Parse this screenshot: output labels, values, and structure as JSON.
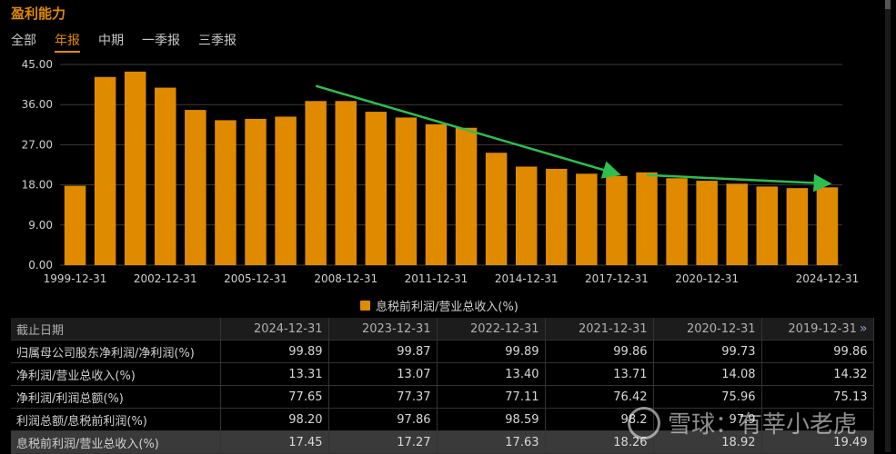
{
  "title": "盈利能力",
  "tabs": [
    {
      "label": "全部",
      "active": false
    },
    {
      "label": "年报",
      "active": true
    },
    {
      "label": "中期",
      "active": false
    },
    {
      "label": "一季报",
      "active": false
    },
    {
      "label": "三季报",
      "active": false
    }
  ],
  "colors": {
    "bar": "#e08a00",
    "trend": "#2fbf4f",
    "accent": "#e08a00"
  },
  "chart_data": {
    "type": "bar",
    "title": "",
    "xlabel": "",
    "ylabel": "",
    "ylim": [
      0,
      45
    ],
    "yticks": [
      "0.00",
      "9.00",
      "18.00",
      "27.00",
      "36.00",
      "45.00"
    ],
    "x_tick_labels": [
      "1999-12-31",
      "2002-12-31",
      "2005-12-31",
      "2008-12-31",
      "2011-12-31",
      "2014-12-31",
      "2017-12-31",
      "2020-12-31",
      "2024-12-31"
    ],
    "categories": [
      "1999-12-31",
      "2000-12-31",
      "2001-12-31",
      "2002-12-31",
      "2003-12-31",
      "2004-12-31",
      "2005-12-31",
      "2006-12-31",
      "2007-12-31",
      "2008-12-31",
      "2009-12-31",
      "2010-12-31",
      "2011-12-31",
      "2012-12-31",
      "2013-12-31",
      "2014-12-31",
      "2015-12-31",
      "2016-12-31",
      "2017-12-31",
      "2018-12-31",
      "2019-12-31",
      "2020-12-31",
      "2021-12-31",
      "2022-12-31",
      "2023-12-31",
      "2024-12-31"
    ],
    "series": [
      {
        "name": "息税前利润/营业总收入(%)",
        "values": [
          17.8,
          42.2,
          43.4,
          39.8,
          34.8,
          32.5,
          32.8,
          33.3,
          36.8,
          36.8,
          34.4,
          33.1,
          31.6,
          30.8,
          25.2,
          22.1,
          21.6,
          20.5,
          20.0,
          20.8,
          19.49,
          18.92,
          18.26,
          17.63,
          17.27,
          17.45
        ]
      }
    ],
    "legend": "bottom-center",
    "grid": true,
    "annotations": [
      {
        "type": "trend-arrow",
        "from": {
          "x": "2007-12-31",
          "y": 40.2
        },
        "to": {
          "x": "2017-12-31",
          "y": 20.5
        }
      },
      {
        "type": "trend-arrow",
        "from": {
          "x": "2018-12-31",
          "y": 20.2
        },
        "to": {
          "x": "2024-12-31",
          "y": 18.3
        }
      }
    ]
  },
  "table": {
    "header_label": "截止日期",
    "columns": [
      "2024-12-31",
      "2023-12-31",
      "2022-12-31",
      "2021-12-31",
      "2020-12-31",
      "2019-12-31"
    ],
    "more_icon": "double-chevron-right-icon",
    "rows": [
      {
        "label": "归属母公司股东净利润/净利润(%)",
        "values": [
          "99.89",
          "99.87",
          "99.89",
          "99.86",
          "99.73",
          "99.86"
        ],
        "highlight": false
      },
      {
        "label": "净利润/营业总收入(%)",
        "values": [
          "13.31",
          "13.07",
          "13.40",
          "13.71",
          "14.08",
          "14.32"
        ],
        "highlight": false
      },
      {
        "label": "净利润/利润总额(%)",
        "values": [
          "77.65",
          "77.37",
          "77.11",
          "76.42",
          "75.96",
          "75.13"
        ],
        "highlight": false
      },
      {
        "label": "利润总额/息税前利润(%)",
        "values": [
          "98.20",
          "97.86",
          "98.59",
          "98.2",
          "97.9",
          ""
        ],
        "highlight": false
      },
      {
        "label": "息税前利润/营业总收入(%)",
        "values": [
          "17.45",
          "17.27",
          "17.63",
          "18.26",
          "18.92",
          "19.49"
        ],
        "highlight": true
      }
    ]
  },
  "watermark": {
    "text": "雪球：有莘小老虎"
  }
}
